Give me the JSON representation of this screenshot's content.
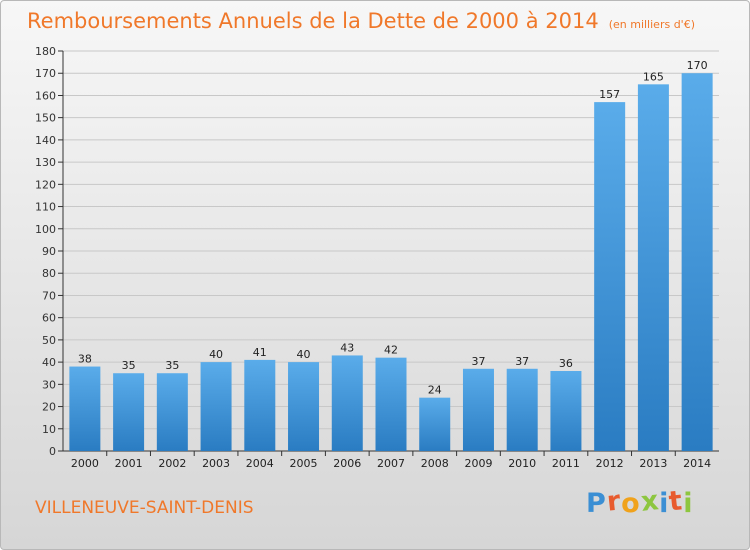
{
  "chart_data": {
    "type": "bar",
    "title": "Remboursements Annuels de la Dette de 2000 à 2014",
    "unit_note": "(en milliers d'€)",
    "categories": [
      "2000",
      "2001",
      "2002",
      "2003",
      "2004",
      "2005",
      "2006",
      "2007",
      "2008",
      "2009",
      "2010",
      "2011",
      "2012",
      "2013",
      "2014"
    ],
    "values": [
      38,
      35,
      35,
      40,
      41,
      40,
      43,
      42,
      24,
      37,
      37,
      36,
      157,
      165,
      170
    ],
    "ylim": [
      0,
      180
    ],
    "yticks": [
      "0",
      "10",
      "20",
      "30",
      "40",
      "50",
      "60",
      "70",
      "80",
      "90",
      "100",
      "110",
      "120",
      "130",
      "140",
      "150",
      "160",
      "170",
      "180"
    ],
    "grid": true,
    "bar_color": "#3a8fd6"
  },
  "footer": {
    "commune": "VILLENEUVE-SAINT-DENIS",
    "logo_letters": [
      "P",
      "r",
      "o",
      "x",
      "i",
      "t",
      "i"
    ],
    "logo_colors": [
      "#3b8fd4",
      "#e85b2e",
      "#f0a21b",
      "#8dc63f",
      "#3b8fd4",
      "#e85b2e",
      "#8dc63f"
    ]
  },
  "colors": {
    "title": "#f0782a",
    "axis": "#333333",
    "grid": "#c8c8c8"
  }
}
